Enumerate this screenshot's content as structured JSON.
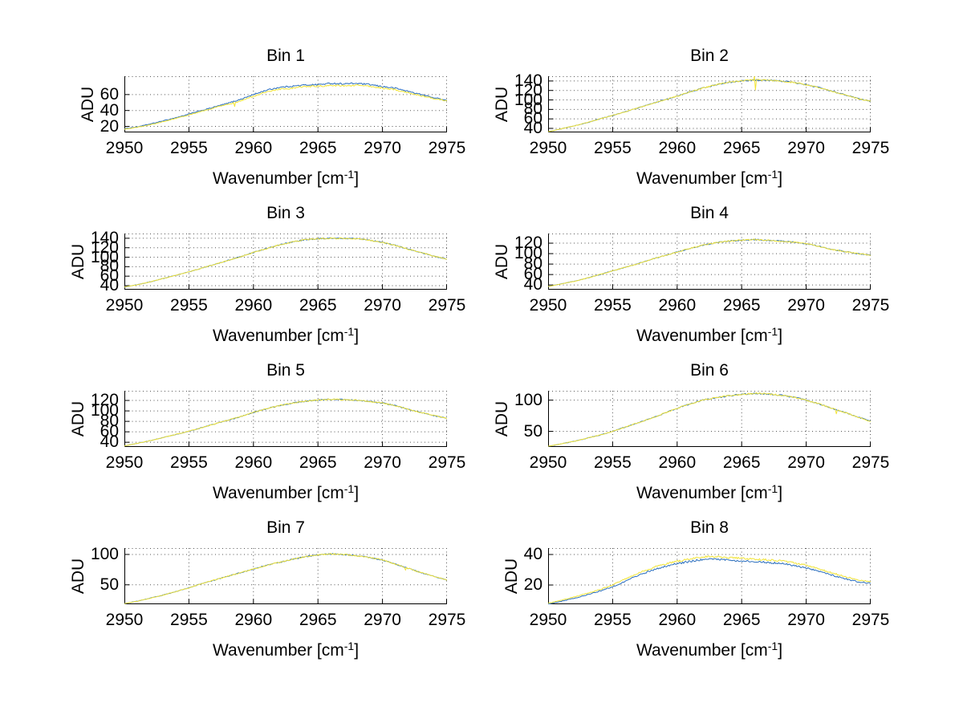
{
  "figure": {
    "background": "#ffffff",
    "style": "matlab-multipanel",
    "rows": 4,
    "cols": 2
  },
  "labels": {
    "ylabel": "ADU",
    "xlabel_prefix": "Wavenumber [cm",
    "xlabel_sup": "-1",
    "xlabel_suffix": "]"
  },
  "colors": {
    "line_blue": "#2c6fbe",
    "line_yellow": "#f2e436",
    "axis": "#000000",
    "grid": "#555555",
    "text": "#000000"
  },
  "chart_data": [
    {
      "type": "line",
      "title": "Bin 1",
      "xlabel": "Wavenumber [cm^-1]",
      "ylabel": "ADU",
      "xlim": [
        2950,
        2975
      ],
      "ylim": [
        12.5,
        83
      ],
      "xticks": [
        2950,
        2955,
        2960,
        2965,
        2970,
        2975
      ],
      "yticks": [
        20,
        40,
        60
      ],
      "grid": true,
      "noise_adu": 0.9,
      "x_control": [
        2950,
        2951,
        2952,
        2953,
        2954,
        2955,
        2956,
        2957,
        2958,
        2959,
        2960,
        2961,
        2962,
        2963,
        2964,
        2965,
        2966,
        2967,
        2968,
        2969,
        2970,
        2971,
        2972,
        2973,
        2974,
        2975
      ],
      "series": [
        {
          "name": "trace-blue",
          "color": "line_blue",
          "y": [
            17,
            19.5,
            23,
            27,
            31,
            35.5,
            40,
            44.5,
            49,
            54,
            60,
            65.5,
            69,
            70.5,
            72,
            72.5,
            74,
            73.5,
            74,
            72.5,
            70,
            68,
            64,
            60,
            56,
            53
          ]
        },
        {
          "name": "trace-yellow",
          "color": "line_yellow",
          "y": [
            16.5,
            19,
            22,
            26,
            30,
            34.5,
            39,
            43.5,
            47.5,
            52,
            58,
            63,
            66.5,
            68,
            70,
            70.5,
            71.5,
            71,
            71.5,
            70.5,
            68,
            66,
            62,
            58.5,
            55,
            52
          ],
          "spikes": [
            [
              2958.55,
              45
            ]
          ]
        }
      ]
    },
    {
      "type": "line",
      "title": "Bin 2",
      "xlabel": "Wavenumber [cm^-1]",
      "ylabel": "ADU",
      "xlim": [
        2950,
        2975
      ],
      "ylim": [
        31.5,
        150
      ],
      "xticks": [
        2950,
        2955,
        2960,
        2965,
        2970,
        2975
      ],
      "yticks": [
        40,
        60,
        80,
        100,
        120,
        140
      ],
      "grid": true,
      "noise_adu": 1.3,
      "x_control": [
        2950,
        2951,
        2952,
        2953,
        2954,
        2955,
        2956,
        2957,
        2958,
        2959,
        2960,
        2961,
        2962,
        2963,
        2964,
        2965,
        2966,
        2967,
        2968,
        2969,
        2970,
        2971,
        2972,
        2973,
        2974,
        2975
      ],
      "series": [
        {
          "name": "trace-blue",
          "color": "line_blue",
          "y": [
            33,
            39,
            45,
            52,
            60,
            67.5,
            75,
            83.5,
            92,
            100,
            108,
            117,
            125,
            132,
            137,
            140,
            142,
            142,
            140,
            137,
            132,
            126,
            118,
            111,
            103,
            97
          ]
        },
        {
          "name": "trace-yellow",
          "color": "line_yellow",
          "y": [
            33,
            39,
            45,
            52,
            60,
            67.5,
            75,
            83.5,
            92,
            100,
            108,
            117,
            125,
            132,
            137,
            140,
            142,
            142,
            140,
            137,
            132,
            126,
            118,
            111,
            103,
            97
          ],
          "spikes": [
            [
              2965.95,
              150
            ],
            [
              2966.1,
              121
            ]
          ]
        }
      ]
    },
    {
      "type": "line",
      "title": "Bin 3",
      "xlabel": "Wavenumber [cm^-1]",
      "ylabel": "ADU",
      "xlim": [
        2950,
        2975
      ],
      "ylim": [
        31.5,
        150
      ],
      "xticks": [
        2950,
        2955,
        2960,
        2965,
        2970,
        2975
      ],
      "yticks": [
        40,
        60,
        80,
        100,
        120,
        140
      ],
      "grid": true,
      "noise_adu": 1.2,
      "x_control": [
        2950,
        2951,
        2952,
        2953,
        2954,
        2955,
        2956,
        2957,
        2958,
        2959,
        2960,
        2961,
        2962,
        2963,
        2964,
        2965,
        2966,
        2967,
        2968,
        2969,
        2970,
        2971,
        2972,
        2973,
        2974,
        2975
      ],
      "series": [
        {
          "name": "trace-blue",
          "color": "line_blue",
          "y": [
            37,
            42,
            48,
            55,
            62,
            69,
            77,
            85,
            93,
            101,
            110,
            118,
            126,
            132,
            137,
            139,
            140,
            139.5,
            139,
            136,
            131,
            125,
            117,
            110,
            102,
            96
          ]
        },
        {
          "name": "trace-yellow",
          "color": "line_yellow",
          "y": [
            37,
            42,
            48,
            55,
            62,
            69,
            77,
            85,
            93,
            101,
            110,
            118,
            126,
            132,
            137,
            139,
            140,
            139.5,
            139,
            136,
            131,
            125,
            117,
            110,
            102,
            96
          ]
        }
      ]
    },
    {
      "type": "line",
      "title": "Bin 4",
      "xlabel": "Wavenumber [cm^-1]",
      "ylabel": "ADU",
      "xlim": [
        2950,
        2975
      ],
      "ylim": [
        31,
        138.5
      ],
      "xticks": [
        2950,
        2955,
        2960,
        2965,
        2970,
        2975
      ],
      "yticks": [
        40,
        60,
        80,
        100,
        120
      ],
      "grid": true,
      "noise_adu": 1.1,
      "x_control": [
        2950,
        2951,
        2952,
        2953,
        2954,
        2955,
        2956,
        2957,
        2958,
        2959,
        2960,
        2961,
        2962,
        2963,
        2964,
        2965,
        2966,
        2967,
        2968,
        2969,
        2970,
        2971,
        2972,
        2973,
        2974,
        2975
      ],
      "series": [
        {
          "name": "trace-blue",
          "color": "line_blue",
          "y": [
            37,
            42,
            47,
            53,
            60,
            67,
            74,
            81,
            89,
            96,
            103,
            110,
            116,
            121,
            124,
            126,
            127,
            125.5,
            124,
            122,
            119,
            114,
            108,
            104,
            100,
            97
          ]
        },
        {
          "name": "trace-yellow",
          "color": "line_yellow",
          "y": [
            37,
            42,
            47,
            53,
            60,
            67,
            74,
            81,
            89,
            96,
            103,
            110,
            116,
            121,
            124,
            126,
            127,
            125.5,
            124,
            122,
            119,
            114,
            108,
            104,
            100,
            97
          ]
        }
      ]
    },
    {
      "type": "line",
      "title": "Bin 5",
      "xlabel": "Wavenumber [cm^-1]",
      "ylabel": "ADU",
      "xlim": [
        2950,
        2975
      ],
      "ylim": [
        31,
        138.5
      ],
      "xticks": [
        2950,
        2955,
        2960,
        2965,
        2970,
        2975
      ],
      "yticks": [
        40,
        60,
        80,
        100,
        120
      ],
      "grid": true,
      "noise_adu": 1.1,
      "x_control": [
        2950,
        2951,
        2952,
        2953,
        2954,
        2955,
        2956,
        2957,
        2958,
        2959,
        2960,
        2961,
        2962,
        2963,
        2964,
        2965,
        2966,
        2967,
        2968,
        2969,
        2970,
        2971,
        2972,
        2973,
        2974,
        2975
      ],
      "series": [
        {
          "name": "trace-blue",
          "color": "line_blue",
          "y": [
            33,
            38,
            43,
            49,
            55,
            61,
            68,
            75,
            82,
            89,
            97,
            104,
            110,
            115,
            118.5,
            121,
            122,
            121.5,
            120.5,
            118,
            115,
            110,
            103,
            97,
            91,
            86
          ]
        },
        {
          "name": "trace-yellow",
          "color": "line_yellow",
          "y": [
            33,
            38,
            43,
            49,
            55,
            61,
            68,
            75,
            82,
            89,
            97,
            104,
            110,
            115,
            118.5,
            121,
            122,
            121.5,
            120.5,
            118,
            115,
            110,
            103,
            97,
            91,
            86
          ]
        }
      ]
    },
    {
      "type": "line",
      "title": "Bin 6",
      "xlabel": "Wavenumber [cm^-1]",
      "ylabel": "ADU",
      "xlim": [
        2950,
        2975
      ],
      "ylim": [
        25,
        115
      ],
      "xticks": [
        2950,
        2955,
        2960,
        2965,
        2970,
        2975
      ],
      "yticks": [
        50,
        100
      ],
      "grid": true,
      "noise_adu": 1.1,
      "x_control": [
        2950,
        2951,
        2952,
        2953,
        2954,
        2955,
        2956,
        2957,
        2958,
        2959,
        2960,
        2961,
        2962,
        2963,
        2964,
        2965,
        2966,
        2967,
        2968,
        2969,
        2970,
        2971,
        2972,
        2973,
        2974,
        2975
      ],
      "series": [
        {
          "name": "trace-blue",
          "color": "line_blue",
          "y": [
            26,
            30,
            34,
            39,
            44,
            50,
            57,
            64,
            71,
            79,
            87,
            94,
            100,
            104,
            107,
            109,
            111,
            110,
            108,
            105,
            100,
            94,
            87,
            80,
            73,
            66
          ]
        },
        {
          "name": "trace-yellow",
          "color": "line_yellow",
          "y": [
            26,
            30,
            34,
            39,
            44,
            50,
            57,
            64,
            71,
            79,
            87,
            94,
            100,
            104,
            107,
            109,
            111,
            110,
            108,
            105,
            100,
            94,
            87,
            80,
            73,
            66
          ],
          "spikes": [
            [
              2972.3,
              78
            ]
          ]
        }
      ]
    },
    {
      "type": "line",
      "title": "Bin 7",
      "xlabel": "Wavenumber [cm^-1]",
      "ylabel": "ADU",
      "xlim": [
        2950,
        2975
      ],
      "ylim": [
        18,
        110.5
      ],
      "xticks": [
        2950,
        2955,
        2960,
        2965,
        2970,
        2975
      ],
      "yticks": [
        50,
        100
      ],
      "grid": true,
      "noise_adu": 1.0,
      "x_control": [
        2950,
        2951,
        2952,
        2953,
        2954,
        2955,
        2956,
        2957,
        2958,
        2959,
        2960,
        2961,
        2962,
        2963,
        2964,
        2965,
        2966,
        2967,
        2968,
        2969,
        2970,
        2971,
        2972,
        2973,
        2974,
        2975
      ],
      "series": [
        {
          "name": "trace-blue",
          "color": "line_blue",
          "y": [
            19,
            23,
            28,
            33,
            39,
            45,
            52,
            58,
            64,
            70,
            76,
            82,
            87,
            92,
            96,
            99,
            101,
            100,
            98,
            95,
            91,
            84,
            77,
            70,
            64,
            58
          ]
        },
        {
          "name": "trace-yellow",
          "color": "line_yellow",
          "y": [
            19,
            23,
            28,
            33,
            39,
            45,
            52,
            58,
            64,
            70,
            76,
            82,
            87,
            92,
            96,
            99,
            101,
            100,
            98,
            95,
            91,
            84,
            77,
            70,
            64,
            58
          ],
          "spikes": [
            [
              2971.8,
              74
            ]
          ]
        }
      ]
    },
    {
      "type": "line",
      "title": "Bin 8",
      "xlabel": "Wavenumber [cm^-1]",
      "ylabel": "ADU",
      "xlim": [
        2950,
        2975
      ],
      "ylim": [
        7.4,
        44.2
      ],
      "xticks": [
        2950,
        2955,
        2960,
        2965,
        2970,
        2975
      ],
      "yticks": [
        20,
        40
      ],
      "grid": true,
      "noise_adu": 0.6,
      "x_control": [
        2950,
        2951,
        2952,
        2953,
        2954,
        2955,
        2956,
        2957,
        2958,
        2959,
        2960,
        2961,
        2962,
        2963,
        2964,
        2965,
        2966,
        2967,
        2968,
        2969,
        2970,
        2971,
        2972,
        2973,
        2974,
        2975
      ],
      "series": [
        {
          "name": "trace-blue",
          "color": "line_blue",
          "y": [
            7.5,
            9.3,
            11.2,
            13.5,
            16,
            18.8,
            22.5,
            26.5,
            29.5,
            32,
            34,
            35.5,
            36.8,
            36.8,
            36.2,
            35.8,
            35.2,
            34.8,
            34.2,
            32.8,
            31.2,
            29,
            26.5,
            24.2,
            22.2,
            21
          ]
        },
        {
          "name": "trace-yellow",
          "color": "line_yellow",
          "y": [
            8,
            10,
            12,
            14.5,
            17,
            20,
            24,
            28,
            31,
            33.5,
            35.5,
            37,
            38.5,
            38.5,
            38,
            37.5,
            37,
            36.5,
            36,
            34.5,
            33,
            30.5,
            28,
            25.5,
            23.5,
            22
          ]
        }
      ]
    }
  ]
}
